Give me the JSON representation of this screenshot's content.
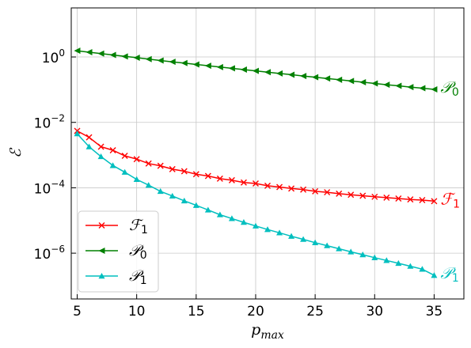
{
  "chart_data": {
    "type": "line",
    "title": "",
    "xlabel": {
      "base": "p",
      "sub": "max"
    },
    "ylabel": "ℰ",
    "xlim": [
      4.5,
      37.5
    ],
    "ylim_log10": [
      -7.4,
      1.5
    ],
    "yscale": "log",
    "grid": true,
    "legend_placement": "lower-left",
    "xticks": [
      "5",
      "10",
      "15",
      "20",
      "25",
      "30",
      "35"
    ],
    "yticks": [
      {
        "value": 1,
        "base": "10",
        "exp": "0"
      },
      {
        "value": 0.01,
        "base": "10",
        "exp": "−2"
      },
      {
        "value": 0.0001,
        "base": "10",
        "exp": "−4"
      },
      {
        "value": 1e-06,
        "base": "10",
        "exp": "−6"
      }
    ],
    "x": [
      5,
      6,
      7,
      8,
      9,
      10,
      11,
      12,
      13,
      14,
      15,
      16,
      17,
      18,
      19,
      20,
      21,
      22,
      23,
      24,
      25,
      26,
      27,
      28,
      29,
      30,
      31,
      32,
      33,
      34,
      35
    ],
    "series": [
      {
        "id": "P0",
        "label": {
          "base": "𝒫",
          "sub": "0"
        },
        "color": "#008000",
        "marker": "triangle-left",
        "values": [
          1.55,
          1.4,
          1.27,
          1.15,
          1.04,
          0.95,
          0.86,
          0.78,
          0.71,
          0.65,
          0.59,
          0.54,
          0.49,
          0.45,
          0.41,
          0.375,
          0.343,
          0.313,
          0.287,
          0.262,
          0.24,
          0.22,
          0.201,
          0.184,
          0.169,
          0.155,
          0.142,
          0.131,
          0.12,
          0.111,
          0.102
        ]
      },
      {
        "id": "F1",
        "label": {
          "base": "ℱ",
          "sub": "1"
        },
        "color": "#ff0000",
        "marker": "x",
        "values": [
          0.0055,
          0.0035,
          0.0018,
          0.0014,
          0.00095,
          0.00075,
          0.00055,
          0.00047,
          0.00037,
          0.00032,
          0.00026,
          0.00023,
          0.00019,
          0.00017,
          0.000145,
          0.000135,
          0.000115,
          0.000105,
          9.5e-05,
          8.8e-05,
          7.8e-05,
          7.3e-05,
          6.6e-05,
          6.1e-05,
          5.7e-05,
          5.3e-05,
          5e-05,
          4.7e-05,
          4.4e-05,
          4.2e-05,
          3.9e-05
        ]
      },
      {
        "id": "P1",
        "label": {
          "base": "𝒫",
          "sub": "1"
        },
        "color": "#00bfbf",
        "marker": "triangle-up",
        "values": [
          0.0045,
          0.0018,
          0.0009,
          0.00048,
          0.0003,
          0.00018,
          0.00012,
          7.8e-05,
          5.6e-05,
          4e-05,
          2.9e-05,
          2.1e-05,
          1.5e-05,
          1.15e-05,
          8.8e-06,
          6.8e-06,
          5.3e-06,
          4.2e-06,
          3.3e-06,
          2.65e-06,
          2.1e-06,
          1.7e-06,
          1.37e-06,
          1.1e-06,
          9e-07,
          7.3e-07,
          6e-07,
          4.9e-07,
          4e-07,
          3.25e-07,
          2.1e-07
        ]
      }
    ],
    "legend_order": [
      "F1",
      "P0",
      "P1"
    ]
  }
}
